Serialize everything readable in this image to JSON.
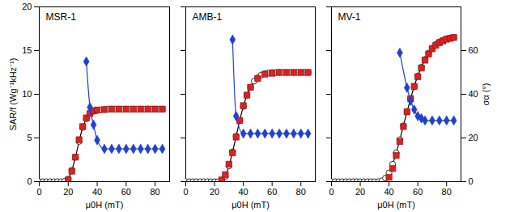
{
  "chart_data": [
    {
      "type": "line",
      "title": "MSR-1",
      "xlabel": "μ0H (mT)",
      "ylabel": "SAR/f (Wg⁻¹kHz⁻¹)",
      "xlim": [
        0,
        90
      ],
      "xticks": [
        0,
        20,
        40,
        60,
        80
      ],
      "ylim": [
        0,
        20
      ],
      "yticks": [
        0,
        5,
        10,
        15,
        20
      ],
      "y2lim": [
        0,
        80
      ],
      "tick_labels": true,
      "series": [
        {
          "type": "line",
          "color": "#000000",
          "marker": "circle",
          "line_style": "solid",
          "x": [
            0,
            2.5,
            5,
            7.5,
            10,
            12.5,
            15,
            17.5,
            20,
            22.5,
            25,
            27.5,
            30,
            32.5,
            35,
            37.5,
            40,
            42.5,
            45,
            47.5,
            50,
            52.5,
            55,
            57.5,
            60,
            62.5,
            65,
            67.5,
            70,
            72.5,
            75,
            77.5,
            80,
            82.5,
            85
          ],
          "values": [
            0,
            0,
            0,
            0,
            0,
            0,
            0,
            0.05,
            0.3,
            1.3,
            2.8,
            4.6,
            6.2,
            7.2,
            7.8,
            8.05,
            8.15,
            8.2,
            8.25,
            8.3,
            8.3,
            8.3,
            8.3,
            8.3,
            8.3,
            8.3,
            8.3,
            8.3,
            8.3,
            8.3,
            8.3,
            8.3,
            8.3,
            8.3,
            8.3
          ]
        },
        {
          "type": "scatter",
          "color": "#e02020",
          "marker": "square",
          "x": [
            20,
            22.5,
            25,
            27.5,
            30,
            32.5,
            35,
            37.5,
            40,
            45,
            50,
            55,
            60,
            65,
            70,
            75,
            80,
            85
          ],
          "values": [
            0.2,
            1.2,
            2.8,
            4.8,
            6.3,
            7.3,
            7.8,
            8.1,
            8.2,
            8.25,
            8.3,
            8.3,
            8.3,
            8.3,
            8.3,
            8.3,
            8.3,
            8.3
          ]
        },
        {
          "type": "line",
          "color": "#2040d0",
          "marker": "diamond",
          "line_style": "solid",
          "axis": "y2",
          "x": [
            32.5,
            35,
            37.5,
            40,
            45,
            50,
            55,
            60,
            65,
            70,
            75,
            80,
            85
          ],
          "values": [
            55,
            34,
            26,
            19,
            15,
            15,
            15,
            15,
            15,
            15,
            15,
            15,
            15
          ]
        }
      ]
    },
    {
      "type": "line",
      "title": "AMB-1",
      "xlabel": "μ0H (mT)",
      "xlim": [
        0,
        90
      ],
      "xticks": [
        0,
        20,
        40,
        60,
        80
      ],
      "ylim": [
        0,
        20
      ],
      "yticks": [
        0,
        5,
        10,
        15,
        20
      ],
      "y2lim": [
        0,
        80
      ],
      "tick_labels": "x",
      "series": [
        {
          "type": "line",
          "color": "#000000",
          "marker": "circle",
          "line_style": "solid",
          "x": [
            0,
            2.5,
            5,
            7.5,
            10,
            12.5,
            15,
            17.5,
            20,
            22.5,
            25,
            27.5,
            30,
            32.5,
            35,
            37.5,
            40,
            42.5,
            45,
            47.5,
            50,
            52.5,
            55,
            57.5,
            60,
            62.5,
            65,
            67.5,
            70,
            72.5,
            75,
            77.5,
            80,
            82.5,
            85
          ],
          "values": [
            0,
            0,
            0,
            0,
            0,
            0,
            0,
            0,
            0,
            0,
            0.1,
            0.6,
            1.8,
            3.4,
            5.2,
            7.0,
            8.6,
            9.9,
            10.8,
            11.5,
            11.9,
            12.2,
            12.35,
            12.45,
            12.5,
            12.5,
            12.5,
            12.5,
            12.5,
            12.5,
            12.5,
            12.5,
            12.5,
            12.5,
            12.5
          ]
        },
        {
          "type": "scatter",
          "color": "#e02020",
          "marker": "square",
          "x": [
            25,
            27.5,
            30,
            32.5,
            35,
            37.5,
            40,
            42.5,
            45,
            50,
            55,
            60,
            65,
            70,
            75,
            80,
            85
          ],
          "values": [
            0.2,
            0.8,
            2.0,
            3.3,
            5.1,
            7.0,
            8.7,
            9.9,
            10.8,
            11.8,
            12.3,
            12.4,
            12.5,
            12.5,
            12.5,
            12.5,
            12.5
          ]
        },
        {
          "type": "line",
          "color": "#2040d0",
          "marker": "diamond",
          "line_style": "solid",
          "axis": "y2",
          "x": [
            32.5,
            35,
            40,
            45,
            50,
            55,
            60,
            65,
            70,
            75,
            80,
            85
          ],
          "values": [
            65,
            30,
            22,
            22,
            22,
            22,
            22,
            22,
            22,
            22,
            22,
            22
          ]
        }
      ]
    },
    {
      "type": "line",
      "title": "MV-1",
      "xlabel": "μ0H (mT)",
      "y2label": "σα (°)",
      "xlim": [
        0,
        90
      ],
      "xticks": [
        0,
        20,
        40,
        60,
        80
      ],
      "ylim": [
        0,
        20
      ],
      "yticks": [
        0,
        5,
        10,
        15,
        20
      ],
      "y2lim": [
        0,
        80
      ],
      "y2ticks": [
        0,
        20,
        40,
        60
      ],
      "tick_labels": "x",
      "series": [
        {
          "type": "line",
          "color": "#000000",
          "marker": "circle",
          "line_style": "solid",
          "x": [
            0,
            2.5,
            5,
            7.5,
            10,
            12.5,
            15,
            17.5,
            20,
            22.5,
            25,
            27.5,
            30,
            32.5,
            35,
            37.5,
            40,
            42.5,
            45,
            47.5,
            50,
            52.5,
            55,
            57.5,
            60,
            62.5,
            65,
            67.5,
            70,
            72.5,
            75,
            77.5,
            80,
            82.5,
            85
          ],
          "values": [
            0,
            0,
            0,
            0,
            0,
            0,
            0,
            0,
            0,
            0,
            0,
            0,
            0,
            0,
            0.1,
            0.4,
            1.0,
            2.0,
            3.3,
            4.8,
            6.4,
            8.0,
            9.5,
            10.9,
            12.1,
            13.1,
            14.0,
            14.7,
            15.3,
            15.7,
            16.0,
            16.2,
            16.35,
            16.45,
            16.5
          ]
        },
        {
          "type": "scatter",
          "color": "#e02020",
          "marker": "square",
          "x": [
            40,
            42.5,
            45,
            47.5,
            50,
            52.5,
            55,
            57.5,
            60,
            62.5,
            65,
            67.5,
            70,
            72.5,
            75,
            77.5,
            80,
            82.5,
            85
          ],
          "values": [
            0.5,
            1.5,
            3.0,
            4.6,
            6.3,
            8.0,
            9.5,
            10.9,
            12.0,
            13.0,
            13.9,
            14.6,
            15.2,
            15.6,
            15.9,
            16.1,
            16.3,
            16.4,
            16.5
          ]
        },
        {
          "type": "line",
          "color": "#2040d0",
          "marker": "diamond",
          "line_style": "solid",
          "axis": "y2",
          "x": [
            47.5,
            52.5,
            55,
            57.5,
            60,
            62.5,
            65,
            70,
            75,
            80,
            85
          ],
          "values": [
            59,
            43,
            37,
            33,
            30,
            29,
            28,
            28,
            28,
            28,
            28
          ]
        }
      ]
    }
  ]
}
